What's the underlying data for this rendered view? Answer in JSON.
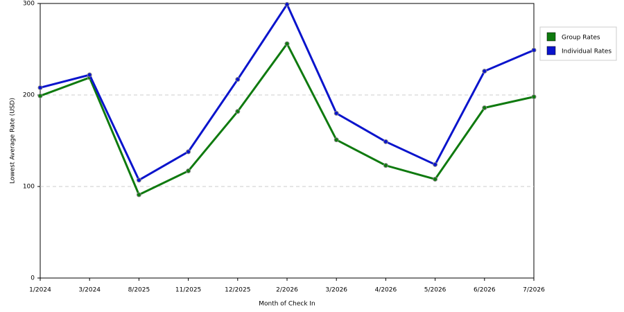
{
  "chart_data": {
    "type": "line",
    "x_label": "Month of Check In",
    "y_label": "Lowest Average Rate (USD)",
    "categories": [
      "1/2024",
      "3/2024",
      "8/2025",
      "11/2025",
      "12/2025",
      "2/2026",
      "3/2026",
      "4/2026",
      "5/2026",
      "6/2026",
      "7/2026"
    ],
    "series": [
      {
        "name": "Group Rates",
        "color": "#0f7a0f",
        "values": [
          199,
          219,
          91,
          117,
          182,
          256,
          151,
          123,
          108,
          186,
          198
        ]
      },
      {
        "name": "Individual Rates",
        "color": "#0a14cc",
        "values": [
          208,
          222,
          107,
          138,
          217,
          299,
          180,
          149,
          124,
          226,
          249
        ]
      }
    ],
    "ylim": [
      0,
      300
    ],
    "yticks": [
      0,
      100,
      200,
      300
    ],
    "grid": true,
    "legend": "right"
  }
}
